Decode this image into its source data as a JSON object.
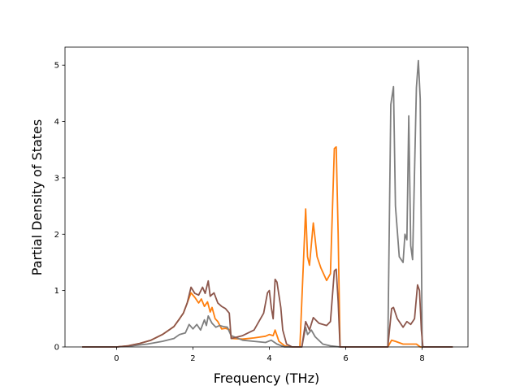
{
  "chart_data": {
    "type": "line",
    "title": "",
    "xlabel": "Frequency (THz)",
    "ylabel": "Partial Density of States",
    "xlim": [
      -1.35,
      9.2
    ],
    "ylim": [
      0,
      5.32
    ],
    "xticks": [
      0,
      2,
      4,
      6,
      8
    ],
    "yticks": [
      0,
      1,
      2,
      3,
      4,
      5
    ],
    "grid": false,
    "legend": "none",
    "series": [
      {
        "color": "#ff7f0e",
        "points": [
          [
            -0.9,
            0
          ],
          [
            0,
            0
          ],
          [
            0.3,
            0.02
          ],
          [
            0.6,
            0.06
          ],
          [
            0.9,
            0.12
          ],
          [
            1.2,
            0.22
          ],
          [
            1.5,
            0.36
          ],
          [
            1.65,
            0.5
          ],
          [
            1.75,
            0.6
          ],
          [
            1.85,
            0.78
          ],
          [
            1.95,
            0.96
          ],
          [
            2.05,
            0.88
          ],
          [
            2.15,
            0.78
          ],
          [
            2.22,
            0.85
          ],
          [
            2.3,
            0.72
          ],
          [
            2.38,
            0.8
          ],
          [
            2.45,
            0.62
          ],
          [
            2.5,
            0.7
          ],
          [
            2.58,
            0.5
          ],
          [
            2.65,
            0.45
          ],
          [
            2.75,
            0.32
          ],
          [
            2.85,
            0.33
          ],
          [
            2.95,
            0.31
          ],
          [
            3.02,
            0.15
          ],
          [
            3.3,
            0.14
          ],
          [
            3.6,
            0.16
          ],
          [
            3.9,
            0.19
          ],
          [
            4.0,
            0.22
          ],
          [
            4.1,
            0.2
          ],
          [
            4.15,
            0.3
          ],
          [
            4.25,
            0.1
          ],
          [
            4.4,
            0.02
          ],
          [
            4.55,
            0
          ],
          [
            4.8,
            0
          ],
          [
            4.95,
            2.45
          ],
          [
            5.0,
            1.6
          ],
          [
            5.05,
            1.45
          ],
          [
            5.15,
            2.2
          ],
          [
            5.25,
            1.6
          ],
          [
            5.35,
            1.4
          ],
          [
            5.5,
            1.18
          ],
          [
            5.6,
            1.3
          ],
          [
            5.7,
            3.52
          ],
          [
            5.75,
            3.55
          ],
          [
            5.8,
            2.0
          ],
          [
            5.85,
            0
          ],
          [
            7.1,
            0
          ],
          [
            7.2,
            0.12
          ],
          [
            7.3,
            0.1
          ],
          [
            7.5,
            0.05
          ],
          [
            7.7,
            0.05
          ],
          [
            7.85,
            0.05
          ],
          [
            7.95,
            0
          ],
          [
            8.8,
            0
          ]
        ]
      },
      {
        "color": "#7f7f7f",
        "points": [
          [
            -0.9,
            0
          ],
          [
            0,
            0
          ],
          [
            0.4,
            0.02
          ],
          [
            0.8,
            0.05
          ],
          [
            1.2,
            0.1
          ],
          [
            1.5,
            0.15
          ],
          [
            1.65,
            0.22
          ],
          [
            1.8,
            0.25
          ],
          [
            1.9,
            0.4
          ],
          [
            2.0,
            0.32
          ],
          [
            2.1,
            0.4
          ],
          [
            2.2,
            0.3
          ],
          [
            2.3,
            0.48
          ],
          [
            2.35,
            0.38
          ],
          [
            2.4,
            0.55
          ],
          [
            2.5,
            0.42
          ],
          [
            2.6,
            0.35
          ],
          [
            2.7,
            0.38
          ],
          [
            2.8,
            0.36
          ],
          [
            2.9,
            0.35
          ],
          [
            3.0,
            0.2
          ],
          [
            3.3,
            0.12
          ],
          [
            3.6,
            0.1
          ],
          [
            3.9,
            0.08
          ],
          [
            4.05,
            0.12
          ],
          [
            4.2,
            0.05
          ],
          [
            4.4,
            0
          ],
          [
            4.85,
            0
          ],
          [
            4.95,
            0.35
          ],
          [
            5.0,
            0.22
          ],
          [
            5.1,
            0.3
          ],
          [
            5.2,
            0.18
          ],
          [
            5.4,
            0.05
          ],
          [
            5.6,
            0.02
          ],
          [
            5.85,
            0
          ],
          [
            7.1,
            0
          ],
          [
            7.18,
            4.3
          ],
          [
            7.25,
            4.62
          ],
          [
            7.3,
            2.5
          ],
          [
            7.4,
            1.6
          ],
          [
            7.5,
            1.5
          ],
          [
            7.55,
            2.0
          ],
          [
            7.6,
            1.9
          ],
          [
            7.65,
            4.1
          ],
          [
            7.7,
            1.8
          ],
          [
            7.75,
            1.55
          ],
          [
            7.85,
            4.6
          ],
          [
            7.9,
            5.08
          ],
          [
            7.95,
            4.4
          ],
          [
            8.0,
            0
          ],
          [
            8.8,
            0
          ]
        ]
      },
      {
        "color": "#8c564b",
        "points": [
          [
            -0.9,
            0
          ],
          [
            0,
            0
          ],
          [
            0.3,
            0.02
          ],
          [
            0.6,
            0.06
          ],
          [
            0.9,
            0.12
          ],
          [
            1.2,
            0.22
          ],
          [
            1.5,
            0.36
          ],
          [
            1.65,
            0.5
          ],
          [
            1.75,
            0.6
          ],
          [
            1.85,
            0.78
          ],
          [
            1.95,
            1.06
          ],
          [
            2.05,
            0.95
          ],
          [
            2.15,
            0.92
          ],
          [
            2.25,
            1.06
          ],
          [
            2.32,
            0.95
          ],
          [
            2.4,
            1.17
          ],
          [
            2.45,
            0.9
          ],
          [
            2.55,
            0.96
          ],
          [
            2.65,
            0.78
          ],
          [
            2.75,
            0.72
          ],
          [
            2.85,
            0.68
          ],
          [
            2.95,
            0.6
          ],
          [
            3.0,
            0.15
          ],
          [
            3.3,
            0.2
          ],
          [
            3.6,
            0.3
          ],
          [
            3.85,
            0.6
          ],
          [
            3.95,
            0.96
          ],
          [
            4.0,
            1.0
          ],
          [
            4.05,
            0.7
          ],
          [
            4.1,
            0.5
          ],
          [
            4.15,
            1.2
          ],
          [
            4.2,
            1.15
          ],
          [
            4.3,
            0.7
          ],
          [
            4.35,
            0.3
          ],
          [
            4.45,
            0.05
          ],
          [
            4.6,
            0
          ],
          [
            4.85,
            0
          ],
          [
            4.95,
            0.45
          ],
          [
            5.05,
            0.3
          ],
          [
            5.15,
            0.52
          ],
          [
            5.3,
            0.42
          ],
          [
            5.5,
            0.38
          ],
          [
            5.6,
            0.45
          ],
          [
            5.7,
            1.35
          ],
          [
            5.75,
            1.38
          ],
          [
            5.8,
            0.8
          ],
          [
            5.85,
            0
          ],
          [
            7.1,
            0
          ],
          [
            7.2,
            0.68
          ],
          [
            7.25,
            0.7
          ],
          [
            7.35,
            0.5
          ],
          [
            7.5,
            0.35
          ],
          [
            7.6,
            0.45
          ],
          [
            7.7,
            0.4
          ],
          [
            7.8,
            0.5
          ],
          [
            7.88,
            1.1
          ],
          [
            7.93,
            1.0
          ],
          [
            7.98,
            0.3
          ],
          [
            8.02,
            0
          ],
          [
            8.8,
            0
          ]
        ]
      }
    ]
  }
}
